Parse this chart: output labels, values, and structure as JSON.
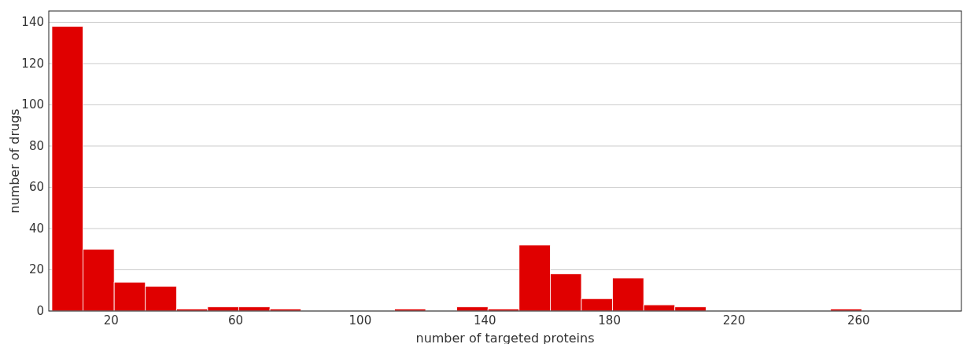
{
  "chart_data": {
    "type": "histogram",
    "xlabel": "number of targeted proteins",
    "ylabel": "number of drugs",
    "bins": [
      1,
      11,
      21,
      31,
      41,
      51,
      61,
      71,
      81,
      91,
      101,
      111,
      121,
      131,
      141,
      151,
      161,
      171,
      181,
      191,
      201,
      211,
      221,
      231,
      241,
      251,
      261
    ],
    "values": [
      138,
      30,
      14,
      12,
      1,
      2,
      2,
      1,
      0,
      0,
      0,
      1,
      0,
      2,
      1,
      32,
      18,
      6,
      16,
      3,
      2,
      0,
      0,
      0,
      0,
      1
    ],
    "color": "#e00000",
    "xlim": [
      0,
      293
    ],
    "ylim": [
      0,
      145.5
    ],
    "xticks": [
      20,
      60,
      100,
      140,
      180,
      220,
      260
    ],
    "yticks": [
      0,
      20,
      40,
      60,
      80,
      100,
      120,
      140
    ],
    "grid": "y"
  }
}
